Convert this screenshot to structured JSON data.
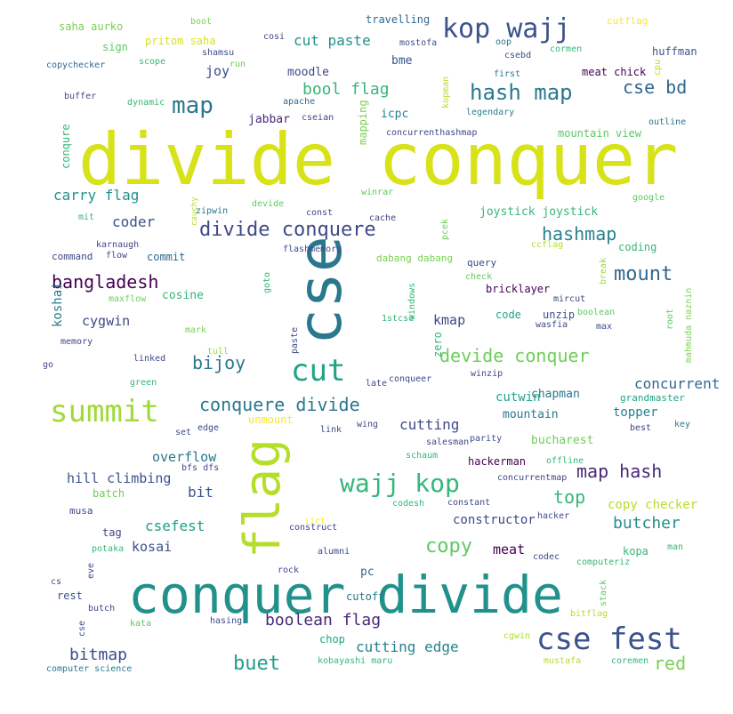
{
  "words": [
    {
      "text": "divide conquer",
      "color": "#d8e219"
    },
    {
      "text": "conquer divide",
      "color": "#21918c"
    },
    {
      "text": "cse",
      "color": "#2a788e"
    },
    {
      "text": "flag",
      "color": "#b5de2b"
    },
    {
      "text": "kop wajj",
      "color": "#3b528b"
    },
    {
      "text": "cse fest",
      "color": "#3b528b"
    },
    {
      "text": "summit",
      "color": "#a0da39"
    },
    {
      "text": "cut",
      "color": "#20a486"
    },
    {
      "text": "wajj kop",
      "color": "#35b779"
    },
    {
      "text": "hash map",
      "color": "#2a788e"
    },
    {
      "text": "map",
      "color": "#2a788e"
    },
    {
      "text": "divide conquere",
      "color": "#3e4989"
    },
    {
      "text": "devide conquer",
      "color": "#6ece58"
    },
    {
      "text": "conquere divide",
      "color": "#2a788e"
    },
    {
      "text": "bangladesh",
      "color": "#440154"
    },
    {
      "text": "cse bd",
      "color": "#31688e"
    },
    {
      "text": "bool flag",
      "color": "#35b779"
    },
    {
      "text": "mount",
      "color": "#31688e"
    },
    {
      "text": "hashmap",
      "color": "#26828e"
    },
    {
      "text": "bijoy",
      "color": "#2a788e"
    },
    {
      "text": "map hash",
      "color": "#482878"
    },
    {
      "text": "boolean flag",
      "color": "#482878"
    },
    {
      "text": "buet",
      "color": "#1f9e89"
    },
    {
      "text": "copy",
      "color": "#5ec962"
    },
    {
      "text": "top",
      "color": "#35b779"
    },
    {
      "text": "butcher",
      "color": "#21918c"
    },
    {
      "text": "red",
      "color": "#7ad151"
    },
    {
      "text": "concurrent",
      "color": "#31688e"
    },
    {
      "text": "cut paste",
      "color": "#21918c"
    },
    {
      "text": "csefest",
      "color": "#1f9e89"
    },
    {
      "text": "bitmap",
      "color": "#3e4989"
    },
    {
      "text": "cutting edge",
      "color": "#26828e"
    },
    {
      "text": "carry flag",
      "color": "#21918c"
    },
    {
      "text": "cutting",
      "color": "#3e4989"
    },
    {
      "text": "overflow",
      "color": "#2a788e"
    },
    {
      "text": "hill climbing",
      "color": "#3b528b"
    },
    {
      "text": "bit",
      "color": "#3b528b"
    },
    {
      "text": "coder",
      "color": "#3b528b"
    },
    {
      "text": "joystick joystick",
      "color": "#35b779"
    },
    {
      "text": "cygwin",
      "color": "#3e4989"
    },
    {
      "text": "kmap",
      "color": "#3e4989"
    },
    {
      "text": "kosai",
      "color": "#3b528b"
    },
    {
      "text": "cutwin",
      "color": "#20a486"
    },
    {
      "text": "mountain",
      "color": "#2a788e"
    },
    {
      "text": "chapman",
      "color": "#2a788e"
    },
    {
      "text": "topper",
      "color": "#26828e"
    },
    {
      "text": "meat",
      "color": "#440154"
    },
    {
      "text": "constructor",
      "color": "#3e4989"
    },
    {
      "text": "copy checker",
      "color": "#b5de2b"
    },
    {
      "text": "koshai",
      "color": "#2a788e"
    },
    {
      "text": "cosine",
      "color": "#35b779"
    },
    {
      "text": "joy",
      "color": "#3e4989"
    },
    {
      "text": "moodle",
      "color": "#3e4989"
    },
    {
      "text": "bme",
      "color": "#3b528b"
    },
    {
      "text": "icpc",
      "color": "#26828e"
    },
    {
      "text": "jabbar",
      "color": "#482878"
    },
    {
      "text": "bucharest",
      "color": "#6ece58"
    },
    {
      "text": "huffman",
      "color": "#3b528b"
    },
    {
      "text": "meat chick",
      "color": "#440154"
    },
    {
      "text": "mountain view",
      "color": "#5ec962"
    },
    {
      "text": "coding",
      "color": "#35b779"
    },
    {
      "text": "commit",
      "color": "#31688e"
    },
    {
      "text": "pritom saha",
      "color": "#d8e219"
    },
    {
      "text": "saha aurko",
      "color": "#7ad151"
    },
    {
      "text": "sign",
      "color": "#5ec962"
    },
    {
      "text": "code",
      "color": "#20a486"
    },
    {
      "text": "unzip",
      "color": "#3b528b"
    },
    {
      "text": "query",
      "color": "#3e4989"
    },
    {
      "text": "bricklayer",
      "color": "#440154"
    },
    {
      "text": "hackerman",
      "color": "#440154"
    },
    {
      "text": "cutoff",
      "color": "#2a788e"
    },
    {
      "text": "pc",
      "color": "#31688e"
    },
    {
      "text": "kopa",
      "color": "#35b779"
    },
    {
      "text": "chop",
      "color": "#20a486"
    },
    {
      "text": "rest",
      "color": "#3b528b"
    },
    {
      "text": "tag",
      "color": "#3e4989"
    },
    {
      "text": "batch",
      "color": "#6ece58"
    },
    {
      "text": "musa",
      "color": "#3e4989"
    },
    {
      "text": "command",
      "color": "#3e4989"
    },
    {
      "text": "grandmaster",
      "color": "#20a486"
    },
    {
      "text": "dabang dabang",
      "color": "#7ad151"
    },
    {
      "text": "travelling",
      "color": "#31688e"
    },
    {
      "text": "cutflag",
      "color": "#fde725"
    },
    {
      "text": "boot",
      "color": "#7ad151"
    },
    {
      "text": "cosi",
      "color": "#3e4989"
    },
    {
      "text": "mostofa",
      "color": "#3e4989"
    },
    {
      "text": "oop",
      "color": "#2a788e"
    },
    {
      "text": "cormen",
      "color": "#35b779"
    },
    {
      "text": "shamsu",
      "color": "#3e4989"
    },
    {
      "text": "copychecker",
      "color": "#31688e"
    },
    {
      "text": "scope",
      "color": "#35b779"
    },
    {
      "text": "run",
      "color": "#6ece58"
    },
    {
      "text": "csebd",
      "color": "#3e4989"
    },
    {
      "text": "first",
      "color": "#2a788e"
    },
    {
      "text": "cpu",
      "color": "#b5de2b"
    },
    {
      "text": "buffer",
      "color": "#3e4989"
    },
    {
      "text": "dynamic",
      "color": "#35b779"
    },
    {
      "text": "apache",
      "color": "#31688e"
    },
    {
      "text": "cseian",
      "color": "#3e4989"
    },
    {
      "text": "kopman",
      "color": "#b5de2b"
    },
    {
      "text": "legendary",
      "color": "#26828e"
    },
    {
      "text": "outline",
      "color": "#2a788e"
    },
    {
      "text": "concurrenthashmap",
      "color": "#3e4989"
    },
    {
      "text": "mapping",
      "color": "#7ad151"
    },
    {
      "text": "conqure",
      "color": "#35b779"
    },
    {
      "text": "winrar",
      "color": "#5ec962"
    },
    {
      "text": "google",
      "color": "#5ec962"
    },
    {
      "text": "mit",
      "color": "#35b779"
    },
    {
      "text": "cauchy",
      "color": "#b5de2b"
    },
    {
      "text": "zipwin",
      "color": "#2a788e"
    },
    {
      "text": "devide",
      "color": "#5ec962"
    },
    {
      "text": "const",
      "color": "#3e4989"
    },
    {
      "text": "cache",
      "color": "#3e4989"
    },
    {
      "text": "pcek",
      "color": "#6ece58"
    },
    {
      "text": "karnaugh",
      "color": "#3e4989"
    },
    {
      "text": "flow",
      "color": "#3e4989"
    },
    {
      "text": "flashmemory",
      "color": "#3e4989"
    },
    {
      "text": "ccflag",
      "color": "#b5de2b"
    },
    {
      "text": "break",
      "color": "#a0da39"
    },
    {
      "text": "check",
      "color": "#5ec962"
    },
    {
      "text": "mircut",
      "color": "#3e4989"
    },
    {
      "text": "goto",
      "color": "#35b779"
    },
    {
      "text": "windows",
      "color": "#35b779"
    },
    {
      "text": "maxflow",
      "color": "#6ece58"
    },
    {
      "text": "boolean",
      "color": "#5ec962"
    },
    {
      "text": "wasfia",
      "color": "#3e4989"
    },
    {
      "text": "max",
      "color": "#3e4989"
    },
    {
      "text": "root",
      "color": "#5ec962"
    },
    {
      "text": "mahmuda naznin",
      "color": "#7ad151"
    },
    {
      "text": "memory",
      "color": "#3e4989"
    },
    {
      "text": "mark",
      "color": "#7ad151"
    },
    {
      "text": "paste",
      "color": "#3e4989"
    },
    {
      "text": "1stcse",
      "color": "#35b779"
    },
    {
      "text": "zero",
      "color": "#35b779"
    },
    {
      "text": "go",
      "color": "#3e4989"
    },
    {
      "text": "tull",
      "color": "#a0da39"
    },
    {
      "text": "linked",
      "color": "#3e4989"
    },
    {
      "text": "winzip",
      "color": "#3e4989"
    },
    {
      "text": "green",
      "color": "#35b779"
    },
    {
      "text": "late",
      "color": "#3e4989"
    },
    {
      "text": "conqueer",
      "color": "#3e4989"
    },
    {
      "text": "unmount",
      "color": "#fde725"
    },
    {
      "text": "wing",
      "color": "#3e4989"
    },
    {
      "text": "edge",
      "color": "#3e4989"
    },
    {
      "text": "set",
      "color": "#3e4989"
    },
    {
      "text": "link",
      "color": "#3e4989"
    },
    {
      "text": "salesman",
      "color": "#3e4989"
    },
    {
      "text": "parity",
      "color": "#3e4989"
    },
    {
      "text": "best",
      "color": "#3e4989"
    },
    {
      "text": "key",
      "color": "#2a788e"
    },
    {
      "text": "schaum",
      "color": "#35b779"
    },
    {
      "text": "offline",
      "color": "#35b779"
    },
    {
      "text": "bfs dfs",
      "color": "#3e4989"
    },
    {
      "text": "concurrentmap",
      "color": "#3e4989"
    },
    {
      "text": "codesh",
      "color": "#35b779"
    },
    {
      "text": "constant",
      "color": "#3e4989"
    },
    {
      "text": "hacker",
      "color": "#3e4989"
    },
    {
      "text": "iict",
      "color": "#fde725"
    },
    {
      "text": "construct",
      "color": "#3e4989"
    },
    {
      "text": "potaka",
      "color": "#35b779"
    },
    {
      "text": "alumni",
      "color": "#3e4989"
    },
    {
      "text": "codec",
      "color": "#3e4989"
    },
    {
      "text": "man",
      "color": "#35b779"
    },
    {
      "text": "computeriz",
      "color": "#35b779"
    },
    {
      "text": "eve",
      "color": "#3e4989"
    },
    {
      "text": "cs",
      "color": "#3e4989"
    },
    {
      "text": "rock",
      "color": "#3e4989"
    },
    {
      "text": "stack",
      "color": "#5ec962"
    },
    {
      "text": "butch",
      "color": "#3e4989"
    },
    {
      "text": "bitflag",
      "color": "#b5de2b"
    },
    {
      "text": "kata",
      "color": "#5ec962"
    },
    {
      "text": "hasing",
      "color": "#3e4989"
    },
    {
      "text": "cse",
      "color": "#3e4989"
    },
    {
      "text": "cgwin",
      "color": "#b5de2b"
    },
    {
      "text": "kobayashi maru",
      "color": "#35b779"
    },
    {
      "text": "computer science",
      "color": "#2a788e"
    },
    {
      "text": "mustafa",
      "color": "#b5de2b"
    },
    {
      "text": "coremen",
      "color": "#35b779"
    }
  ]
}
